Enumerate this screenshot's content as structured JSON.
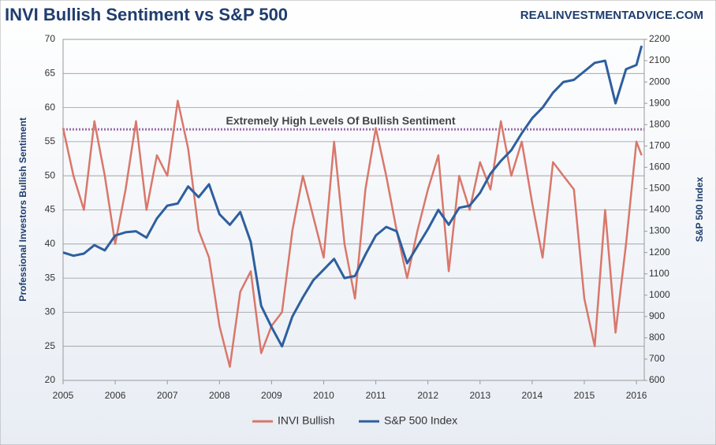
{
  "chart_data": {
    "type": "line",
    "title": "INVI Bullish Sentiment vs S&P 500",
    "source": "REALINVESTMENTADVICE.COM",
    "y_label": "Professional Investors Bullish Sentiment",
    "y2_label": "S&P 500 Index",
    "annotation": {
      "text": "Extremely High Levels Of Bullish Sentiment",
      "value": 56.8,
      "color": "#9b6fa8"
    },
    "x": [
      2005.0,
      2005.2,
      2005.4,
      2005.6,
      2005.8,
      2006.0,
      2006.2,
      2006.4,
      2006.6,
      2006.8,
      2007.0,
      2007.2,
      2007.4,
      2007.6,
      2007.8,
      2008.0,
      2008.2,
      2008.4,
      2008.6,
      2008.8,
      2009.0,
      2009.2,
      2009.4,
      2009.6,
      2009.8,
      2010.0,
      2010.2,
      2010.4,
      2010.6,
      2010.8,
      2011.0,
      2011.2,
      2011.4,
      2011.6,
      2011.8,
      2012.0,
      2012.2,
      2012.4,
      2012.6,
      2012.8,
      2013.0,
      2013.2,
      2013.4,
      2013.6,
      2013.8,
      2014.0,
      2014.2,
      2014.4,
      2014.6,
      2014.8,
      2015.0,
      2015.2,
      2015.4,
      2015.6,
      2015.8,
      2016.0,
      2016.1
    ],
    "series": [
      {
        "name": "INVI Bullish",
        "color": "#d9776b",
        "values": [
          57,
          50,
          45,
          58,
          50,
          40,
          48,
          58,
          45,
          53,
          50,
          61,
          54,
          42,
          38,
          28,
          22,
          33,
          36,
          24,
          28,
          30,
          42,
          50,
          44,
          38,
          55,
          40,
          32,
          48,
          57,
          50,
          42,
          35,
          42,
          48,
          53,
          36,
          50,
          45,
          52,
          48,
          58,
          50,
          55,
          46,
          38,
          52,
          50,
          48,
          32,
          25,
          45,
          27,
          40,
          55,
          53
        ]
      },
      {
        "name": "S&P 500 Index",
        "color": "#2e5f9e",
        "axis": "y2",
        "values": [
          1200,
          1185,
          1195,
          1235,
          1210,
          1280,
          1295,
          1300,
          1270,
          1360,
          1420,
          1430,
          1510,
          1460,
          1520,
          1380,
          1330,
          1390,
          1250,
          950,
          850,
          760,
          900,
          990,
          1070,
          1120,
          1170,
          1080,
          1090,
          1190,
          1280,
          1320,
          1300,
          1150,
          1230,
          1310,
          1400,
          1330,
          1410,
          1420,
          1480,
          1570,
          1630,
          1680,
          1760,
          1830,
          1880,
          1950,
          2000,
          2010,
          2050,
          2090,
          2100,
          1900,
          2060,
          2080,
          2170
        ]
      }
    ],
    "xlim": [
      2005,
      2016.15
    ],
    "xticks": [
      2005,
      2006,
      2007,
      2008,
      2009,
      2010,
      2011,
      2012,
      2013,
      2014,
      2015,
      2016
    ],
    "ylim": [
      20,
      70
    ],
    "yticks": [
      20,
      25,
      30,
      35,
      40,
      45,
      50,
      55,
      60,
      65,
      70
    ],
    "y2lim": [
      600,
      2200
    ],
    "y2ticks": [
      600,
      700,
      800,
      900,
      1000,
      1100,
      1200,
      1300,
      1400,
      1500,
      1600,
      1700,
      1800,
      1900,
      2000,
      2100,
      2200
    ],
    "grid": true,
    "legend": "bottom"
  }
}
